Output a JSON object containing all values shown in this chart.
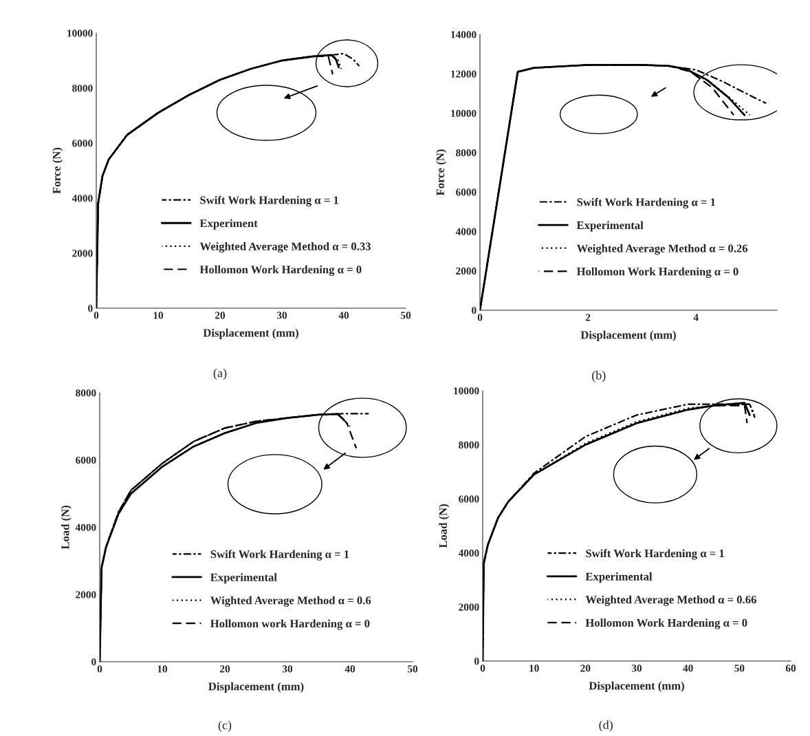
{
  "chart_data": [
    {
      "type": "line",
      "xlabel": "Displacement (mm)",
      "ylabel": "Force (N)",
      "xlim": [
        0,
        50
      ],
      "xticks": [
        0,
        10,
        20,
        30,
        40,
        50
      ],
      "ylim": [
        0,
        10000
      ],
      "yticks": [
        0,
        2000,
        4000,
        6000,
        8000,
        10000
      ],
      "grid": false,
      "legend": "bottom",
      "annotations": [
        "(a)"
      ],
      "series": [
        {
          "name": "Swift Work Hardening α = 1",
          "color": "#000000",
          "line_style": "dashdot",
          "x": [
            0,
            0.3,
            1,
            2,
            5,
            10,
            15,
            20,
            25,
            30,
            35,
            38,
            40,
            41.5,
            42.5
          ],
          "values": [
            0,
            3800,
            4800,
            5400,
            6300,
            7100,
            7750,
            8300,
            8700,
            9000,
            9150,
            9200,
            9250,
            9050,
            8800
          ]
        },
        {
          "name": "Experiment",
          "color": "#000000",
          "line_style": "solid",
          "x": [
            0,
            0.3,
            1,
            2,
            5,
            10,
            15,
            20,
            25,
            30,
            35,
            38,
            38.7,
            39.2
          ],
          "values": [
            0,
            3800,
            4800,
            5400,
            6300,
            7100,
            7750,
            8300,
            8700,
            9000,
            9150,
            9200,
            9050,
            8750
          ]
        },
        {
          "name": "Weighted Average Method α = 0.33",
          "color": "#000000",
          "line_style": "dotted",
          "x": [
            0,
            0.3,
            1,
            2,
            5,
            10,
            15,
            20,
            25,
            30,
            35,
            38,
            39,
            39.6
          ],
          "values": [
            0,
            3800,
            4800,
            5400,
            6300,
            7100,
            7750,
            8300,
            8700,
            9000,
            9150,
            9200,
            9050,
            8700
          ]
        },
        {
          "name": "Hollomon Work Hardening α = 0",
          "color": "#000000",
          "line_style": "dashed",
          "x": [
            0,
            0.3,
            1,
            2,
            5,
            10,
            15,
            20,
            25,
            30,
            35,
            37.5,
            38.2
          ],
          "values": [
            0,
            3800,
            4800,
            5400,
            6300,
            7100,
            7750,
            8300,
            8700,
            9000,
            9150,
            9150,
            8500
          ]
        }
      ]
    },
    {
      "type": "line",
      "xlabel": "Displacement (mm)",
      "ylabel": "Force (N)",
      "xlim": [
        0,
        5.5
      ],
      "xticks": [
        0,
        2,
        4
      ],
      "ylim": [
        0,
        14000
      ],
      "yticks": [
        0,
        2000,
        4000,
        6000,
        8000,
        10000,
        12000,
        14000
      ],
      "grid": false,
      "legend": "bottom",
      "annotations": [
        "(b)"
      ],
      "series": [
        {
          "name": "Swift Work Hardening α = 1",
          "color": "#000000",
          "line_style": "dashdot",
          "x": [
            0,
            0.7,
            1,
            2,
            3,
            3.5,
            4,
            4.5,
            5,
            5.3
          ],
          "values": [
            0,
            12100,
            12300,
            12450,
            12450,
            12400,
            12200,
            11600,
            10900,
            10500
          ]
        },
        {
          "name": "Experimental",
          "color": "#000000",
          "line_style": "solid",
          "x": [
            0,
            0.7,
            1,
            2,
            3,
            3.5,
            3.8,
            4.2,
            4.6,
            4.9
          ],
          "values": [
            0,
            12100,
            12300,
            12450,
            12450,
            12400,
            12250,
            11700,
            10800,
            9900
          ]
        },
        {
          "name": "Weighted Average Method α = 0.26",
          "color": "#000000",
          "line_style": "dotted",
          "x": [
            0,
            0.7,
            1,
            2,
            3,
            3.5,
            3.9,
            4.3,
            4.7,
            5.0
          ],
          "values": [
            0,
            12100,
            12300,
            12450,
            12450,
            12400,
            12150,
            11500,
            10600,
            9900
          ]
        },
        {
          "name": "Hollomon Work Hardening α = 0",
          "color": "#000000",
          "line_style": "dashed",
          "x": [
            0,
            0.7,
            1,
            2,
            3,
            3.5,
            3.9,
            4.3,
            4.7
          ],
          "values": [
            0,
            12100,
            12300,
            12450,
            12450,
            12400,
            12100,
            11300,
            9900
          ]
        }
      ]
    },
    {
      "type": "line",
      "xlabel": "Displacement (mm)",
      "ylabel": "Load (N)",
      "xlim": [
        0,
        50
      ],
      "xticks": [
        0,
        10,
        20,
        30,
        40,
        50
      ],
      "ylim": [
        0,
        8000
      ],
      "yticks": [
        0,
        2000,
        4000,
        6000,
        8000
      ],
      "grid": false,
      "legend": "bottom",
      "annotations": [
        "(c)"
      ],
      "series": [
        {
          "name": "Swift Work Hardening α = 1",
          "color": "#000000",
          "line_style": "dashdot",
          "x": [
            0,
            0.3,
            1,
            3,
            5,
            10,
            15,
            20,
            25,
            30,
            35,
            39,
            43
          ],
          "values": [
            0,
            2800,
            3400,
            4450,
            5100,
            5900,
            6550,
            6950,
            7150,
            7250,
            7350,
            7380,
            7380
          ]
        },
        {
          "name": "Experimental",
          "color": "#000000",
          "line_style": "solid",
          "x": [
            0,
            0.3,
            1,
            3,
            5,
            10,
            15,
            20,
            25,
            30,
            35,
            38,
            39
          ],
          "values": [
            0,
            2800,
            3400,
            4400,
            5000,
            5800,
            6400,
            6800,
            7100,
            7250,
            7350,
            7370,
            7200
          ]
        },
        {
          "name": "Wighted Average Method α = 0.6",
          "color": "#000000",
          "line_style": "dotted",
          "x": [
            0,
            0.3,
            1,
            3,
            5,
            10,
            15,
            20,
            25,
            30,
            35,
            38,
            40
          ],
          "values": [
            0,
            2800,
            3400,
            4450,
            5100,
            5900,
            6550,
            6950,
            7150,
            7250,
            7350,
            7370,
            7000
          ]
        },
        {
          "name": "Hollomon work Hardening α = 0",
          "color": "#000000",
          "line_style": "dashed",
          "x": [
            0,
            0.3,
            1,
            3,
            5,
            10,
            15,
            20,
            25,
            30,
            35,
            38,
            39.5,
            41
          ],
          "values": [
            0,
            2800,
            3400,
            4450,
            5100,
            5900,
            6550,
            6950,
            7150,
            7250,
            7350,
            7370,
            7100,
            6350
          ]
        }
      ]
    },
    {
      "type": "line",
      "xlabel": "Displacement (mm)",
      "ylabel": "Load (N)",
      "xlim": [
        0,
        60
      ],
      "xticks": [
        0,
        10,
        20,
        30,
        40,
        50,
        60
      ],
      "ylim": [
        0,
        10000
      ],
      "yticks": [
        0,
        2000,
        4000,
        6000,
        8000,
        10000
      ],
      "grid": false,
      "legend": "bottom",
      "annotations": [
        "(d)"
      ],
      "series": [
        {
          "name": "Swift Work Hardening α = 1",
          "color": "#000000",
          "line_style": "dashdot",
          "x": [
            0,
            0.2,
            1,
            3,
            5,
            10,
            20,
            30,
            40,
            45,
            52,
            53
          ],
          "values": [
            0,
            3600,
            4300,
            5300,
            5900,
            6950,
            8300,
            9100,
            9500,
            9500,
            9500,
            9000
          ]
        },
        {
          "name": "Experimental",
          "color": "#000000",
          "line_style": "solid",
          "x": [
            0,
            0.2,
            1,
            3,
            5,
            10,
            20,
            30,
            40,
            45,
            51,
            52
          ],
          "values": [
            0,
            3600,
            4300,
            5300,
            5900,
            6900,
            8000,
            8800,
            9300,
            9450,
            9550,
            9100
          ]
        },
        {
          "name": "Weighted Average Method α = 0.66",
          "color": "#000000",
          "line_style": "dotted",
          "x": [
            0,
            0.2,
            1,
            3,
            5,
            10,
            20,
            30,
            40,
            45,
            52,
            53
          ],
          "values": [
            0,
            3600,
            4300,
            5300,
            5900,
            6900,
            8050,
            8850,
            9350,
            9450,
            9500,
            9100
          ]
        },
        {
          "name": "Hollomon Work Hardening α = 0",
          "color": "#000000",
          "line_style": "dashed",
          "x": [
            0,
            0.2,
            1,
            3,
            5,
            10,
            20,
            30,
            40,
            45,
            51,
            51.5
          ],
          "values": [
            0,
            3600,
            4300,
            5300,
            5900,
            6900,
            8000,
            8800,
            9300,
            9450,
            9450,
            8800
          ]
        }
      ]
    }
  ]
}
